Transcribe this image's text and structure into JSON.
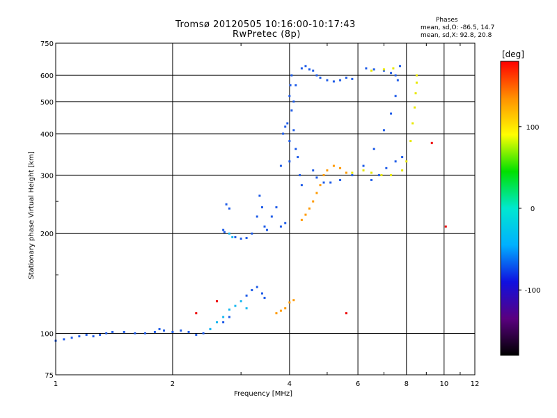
{
  "chart_data": {
    "type": "scatter",
    "title": "Tromsø 20120505 10:16:00-10:17:43",
    "subtitle": "RwPretec (8p)",
    "xlabel": "Frequency [MHz]",
    "ylabel": "Stationary phase Virtual Height [km]",
    "xscale": "log",
    "yscale": "log",
    "xlim": [
      1,
      12
    ],
    "ylim": [
      75,
      750
    ],
    "xticks": [
      1,
      2,
      4,
      6,
      8,
      10,
      12
    ],
    "yticks": [
      75,
      100,
      200,
      300,
      400,
      500,
      600,
      750
    ],
    "grid": true,
    "phase_info": {
      "heading": "Phases",
      "line_o": "mean, sd,O: -86.5, 14.7",
      "line_x": "mean, sd,X: 92.8, 20.8"
    },
    "colorbar": {
      "label": "[deg]",
      "range": [
        -180,
        180
      ],
      "ticks": [
        100,
        0,
        -100
      ],
      "colors": [
        "#000000",
        "#5a0080",
        "#1010e0",
        "#00b0ff",
        "#00e8d0",
        "#00e000",
        "#ffff00",
        "#ff9000",
        "#ff0000"
      ]
    },
    "series": [
      {
        "phase": "blue",
        "color": "#1f5ce8",
        "points": [
          [
            1.0,
            95
          ],
          [
            1.05,
            96
          ],
          [
            1.1,
            97
          ],
          [
            1.15,
            98
          ],
          [
            1.2,
            99
          ],
          [
            1.25,
            98
          ],
          [
            1.3,
            99
          ],
          [
            1.35,
            100
          ],
          [
            1.4,
            101
          ],
          [
            1.5,
            101
          ],
          [
            1.6,
            100
          ],
          [
            1.7,
            100
          ],
          [
            1.8,
            101
          ],
          [
            1.85,
            103
          ],
          [
            1.9,
            102
          ],
          [
            2.0,
            101
          ],
          [
            2.1,
            102
          ],
          [
            2.2,
            101
          ],
          [
            2.3,
            99
          ],
          [
            2.4,
            100
          ],
          [
            2.5,
            103
          ],
          [
            2.7,
            205
          ],
          [
            2.72,
            202
          ],
          [
            2.75,
            245
          ],
          [
            2.8,
            238
          ],
          [
            2.9,
            195
          ],
          [
            3.0,
            193
          ],
          [
            3.1,
            194
          ],
          [
            3.2,
            200
          ],
          [
            3.3,
            225
          ],
          [
            3.35,
            260
          ],
          [
            3.4,
            240
          ],
          [
            3.45,
            210
          ],
          [
            3.5,
            205
          ],
          [
            3.6,
            225
          ],
          [
            3.7,
            240
          ],
          [
            3.8,
            210
          ],
          [
            3.9,
            215
          ],
          [
            3.8,
            320
          ],
          [
            3.85,
            400
          ],
          [
            3.9,
            420
          ],
          [
            3.95,
            430
          ],
          [
            4.0,
            380
          ],
          [
            4.0,
            330
          ],
          [
            4.05,
            470
          ],
          [
            4.1,
            410
          ],
          [
            4.15,
            360
          ],
          [
            4.2,
            340
          ],
          [
            4.25,
            300
          ],
          [
            4.3,
            280
          ],
          [
            4.0,
            520
          ],
          [
            4.02,
            560
          ],
          [
            4.05,
            600
          ],
          [
            4.1,
            500
          ],
          [
            4.15,
            560
          ],
          [
            4.3,
            630
          ],
          [
            4.4,
            640
          ],
          [
            4.5,
            625
          ],
          [
            4.6,
            620
          ],
          [
            4.7,
            600
          ],
          [
            4.8,
            590
          ],
          [
            5.0,
            580
          ],
          [
            5.2,
            575
          ],
          [
            5.4,
            580
          ],
          [
            5.6,
            590
          ],
          [
            5.8,
            585
          ],
          [
            4.6,
            310
          ],
          [
            4.7,
            295
          ],
          [
            4.9,
            285
          ],
          [
            5.1,
            285
          ],
          [
            5.4,
            290
          ],
          [
            5.8,
            300
          ],
          [
            6.2,
            320
          ],
          [
            6.6,
            360
          ],
          [
            7.0,
            410
          ],
          [
            7.3,
            460
          ],
          [
            7.5,
            520
          ],
          [
            7.6,
            580
          ],
          [
            7.7,
            640
          ],
          [
            6.3,
            630
          ],
          [
            6.6,
            625
          ],
          [
            7.0,
            620
          ],
          [
            7.3,
            610
          ],
          [
            7.5,
            600
          ],
          [
            6.5,
            290
          ],
          [
            6.8,
            300
          ],
          [
            7.1,
            315
          ],
          [
            7.5,
            330
          ],
          [
            7.8,
            340
          ],
          [
            3.1,
            130
          ],
          [
            3.2,
            135
          ],
          [
            3.3,
            138
          ],
          [
            3.4,
            132
          ],
          [
            3.45,
            128
          ],
          [
            2.7,
            108
          ],
          [
            2.8,
            112
          ]
        ]
      },
      {
        "phase": "cyan",
        "color": "#18b8f0",
        "points": [
          [
            2.5,
            103
          ],
          [
            2.6,
            108
          ],
          [
            2.7,
            112
          ],
          [
            2.8,
            118
          ],
          [
            2.9,
            121
          ],
          [
            3.0,
            125
          ],
          [
            3.1,
            119
          ],
          [
            2.8,
            200
          ],
          [
            2.85,
            195
          ]
        ]
      },
      {
        "phase": "orange",
        "color": "#ff9a00",
        "points": [
          [
            3.7,
            115
          ],
          [
            3.8,
            117
          ],
          [
            3.9,
            119
          ],
          [
            4.0,
            124
          ],
          [
            4.1,
            126
          ],
          [
            4.3,
            220
          ],
          [
            4.4,
            228
          ],
          [
            4.5,
            238
          ],
          [
            4.6,
            250
          ],
          [
            4.7,
            265
          ],
          [
            4.8,
            280
          ],
          [
            4.9,
            300
          ],
          [
            5.0,
            310
          ],
          [
            5.2,
            320
          ],
          [
            5.4,
            315
          ],
          [
            5.6,
            305
          ]
        ]
      },
      {
        "phase": "yellow",
        "color": "#e8e800",
        "points": [
          [
            5.8,
            305
          ],
          [
            6.2,
            310
          ],
          [
            6.5,
            305
          ],
          [
            6.9,
            300
          ],
          [
            7.3,
            300
          ],
          [
            7.8,
            310
          ],
          [
            8.0,
            330
          ],
          [
            8.2,
            380
          ],
          [
            8.3,
            430
          ],
          [
            8.4,
            480
          ],
          [
            8.45,
            530
          ],
          [
            8.5,
            570
          ],
          [
            8.5,
            600
          ],
          [
            6.5,
            620
          ],
          [
            7.0,
            625
          ],
          [
            7.4,
            630
          ]
        ]
      },
      {
        "phase": "red",
        "color": "#ee0000",
        "points": [
          [
            2.3,
            115
          ],
          [
            5.6,
            115
          ],
          [
            10.1,
            210
          ],
          [
            9.3,
            375
          ],
          [
            2.6,
            125
          ]
        ]
      }
    ]
  }
}
